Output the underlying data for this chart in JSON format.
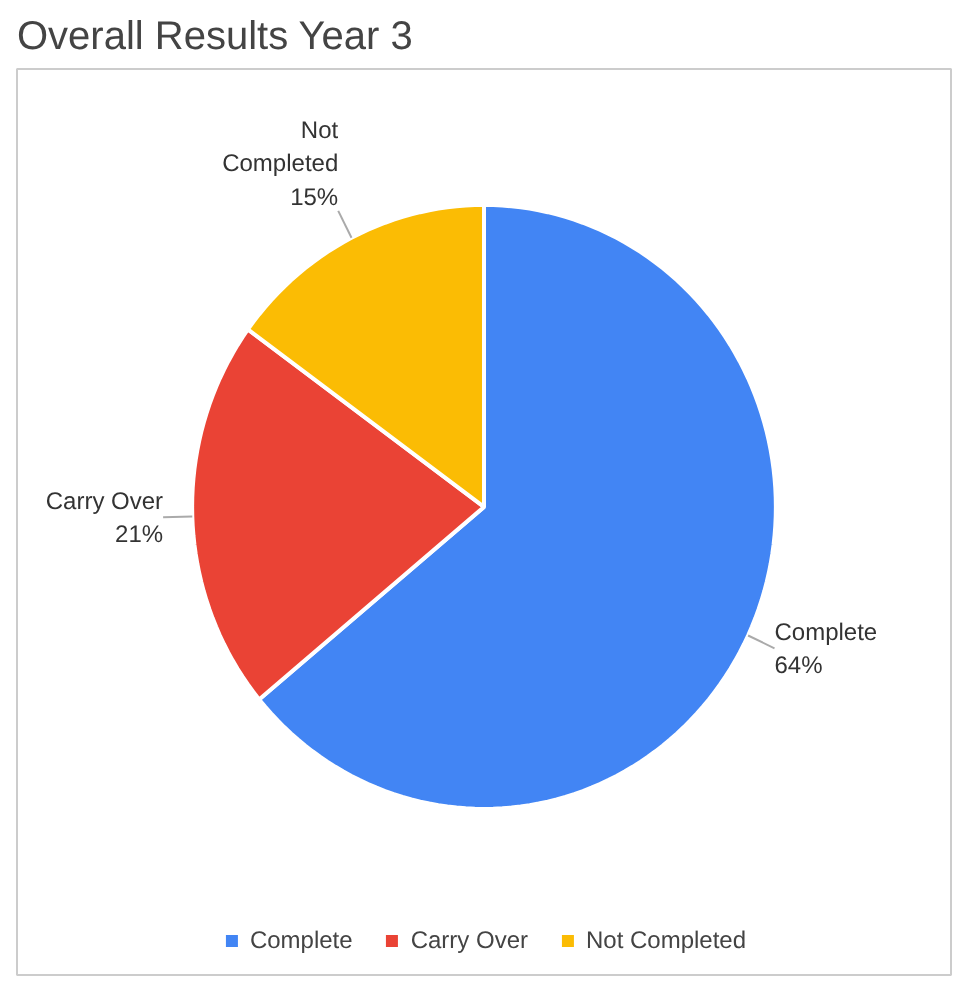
{
  "chart_data": {
    "type": "pie",
    "title": "Overall Results Year 3",
    "categories": [
      "Complete",
      "Carry Over",
      "Not Completed"
    ],
    "values": [
      64,
      21,
      15
    ],
    "colors": [
      "#4285f4",
      "#ea4335",
      "#fbbc04"
    ],
    "value_labels": [
      "64%",
      "21%",
      "15%"
    ],
    "legend": "bottom"
  }
}
